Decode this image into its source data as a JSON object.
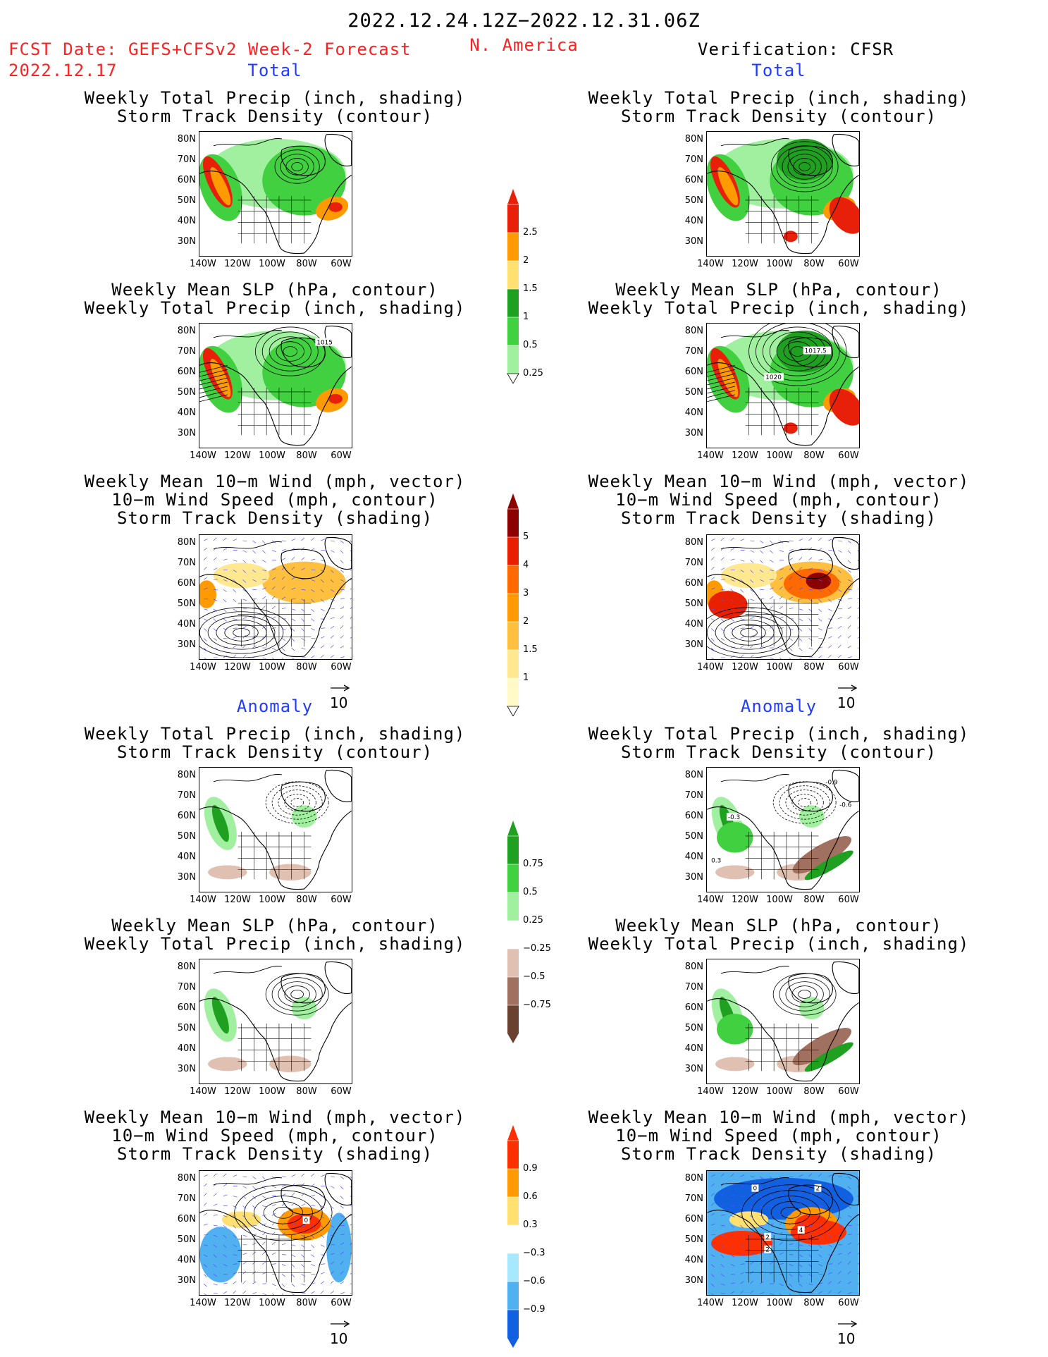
{
  "header": {
    "period": "2022.12.24.12Z−2022.12.31.06Z",
    "region": "N. America",
    "fcst_label": "FCST Date: GEFS+CFSv2 Week-2 Forecast",
    "fcst_date": "2022.12.17",
    "verification": "Verification: CFSR"
  },
  "sections": {
    "total": "Total",
    "anomaly": "Anomaly"
  },
  "titles": {
    "precip_track": [
      "Weekly Total Precip (inch, shading)",
      "Storm Track Density (contour)"
    ],
    "slp_precip": [
      "Weekly Mean SLP (hPa, contour)",
      "Weekly Total Precip (inch, shading)"
    ],
    "wind_track": [
      "Weekly Mean 10−m Wind (mph, vector)",
      "10−m Wind Speed (mph, contour)",
      "Storm Track Density (shading)"
    ]
  },
  "axes": {
    "lat_ticks": [
      "80N",
      "70N",
      "60N",
      "50N",
      "40N",
      "30N"
    ],
    "lon_ticks": [
      "140W",
      "120W",
      "100W",
      "80W",
      "60W"
    ]
  },
  "vector_ref": "10",
  "contour_labels": {
    "slp_fcst": "1015",
    "slp_verif": [
      "1017.5",
      "1020"
    ],
    "anom_track_verif": [
      "-0.3",
      "-0.9",
      "-0.6",
      "0.3"
    ],
    "anom_wind_fcst": [
      "0"
    ],
    "anom_wind_verif": [
      "0",
      "2",
      "2",
      "4",
      "2"
    ]
  },
  "colorbars": {
    "precip_total": {
      "labels": [
        "2.5",
        "2",
        "1.5",
        "1",
        "0.5",
        "0.25"
      ],
      "colors": [
        "#e8200a",
        "#ff9a00",
        "#ffe070",
        "#20a020",
        "#40d040",
        "#a0f0a0"
      ]
    },
    "track_total": {
      "labels": [
        "5",
        "4",
        "3",
        "2",
        "1.5",
        "1"
      ],
      "colors": [
        "#8b0000",
        "#e82000",
        "#ff6a00",
        "#ff9a00",
        "#ffc040",
        "#ffe890",
        "#fffac8"
      ]
    },
    "precip_anom": {
      "labels": [
        "0.75",
        "0.5",
        "0.25",
        "−0.25",
        "−0.5",
        "−0.75"
      ],
      "colors": [
        "#20a020",
        "#40d040",
        "#a0f0a0",
        "#ffffff",
        "#e0c0b0",
        "#a07060",
        "#6a4030"
      ]
    },
    "track_anom": {
      "labels": [
        "0.9",
        "0.6",
        "0.3",
        "−0.3",
        "−0.6",
        "−0.9"
      ],
      "colors": [
        "#ff3000",
        "#ff9a00",
        "#ffe070",
        "#ffffff",
        "#a8e8ff",
        "#50b0f0",
        "#1060e0"
      ]
    }
  },
  "palette": {
    "ocean": "#ffffff",
    "land_line": "#000000",
    "wind_vector": "#5050ff",
    "header_red": "#ff2020",
    "section_blue": "#1f3bff"
  }
}
